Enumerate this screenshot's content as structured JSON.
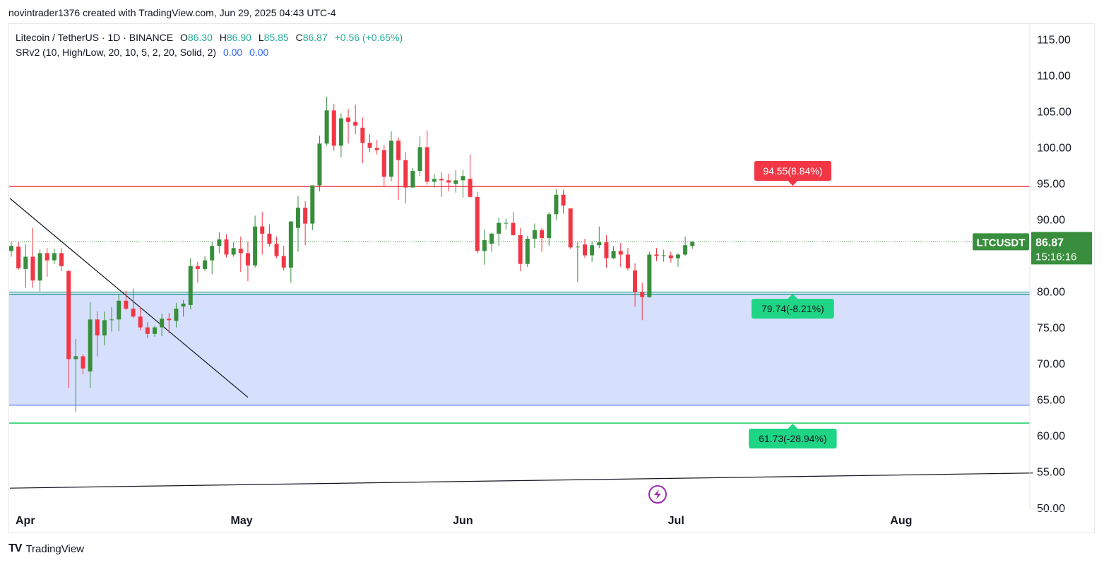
{
  "caption": "novintrader1376 created with TradingView.com, Jun 29, 2025 04:43 UTC-4",
  "legend": {
    "symbol": "Litecoin / TetherUS · 1D · BINANCE",
    "o_label": "O",
    "o_value": "86.30",
    "h_label": "H",
    "h_value": "86.90",
    "l_label": "L",
    "l_value": "85.85",
    "c_label": "C",
    "c_value": "86.87",
    "change": "+0.56 (+0.65%)",
    "indicator": "SRv2 (10, High/Low, 20, 10, 5, 2, 20, Solid, 2)",
    "ind_v1": "0.00",
    "ind_v2": "0.00"
  },
  "footer": {
    "brand": "TradingView",
    "logo": "TV"
  },
  "colors": {
    "up": "#22ab94",
    "up_dark": "#388e3c",
    "down": "#f23645",
    "zone_fill": "#d6e0fc",
    "zone_line": "#2962ff",
    "support_line": "#00897b",
    "low_line": "#00c853",
    "resistance_line": "#f23645",
    "trend": "#131722",
    "flash": "#9c27b0"
  },
  "chart_data": {
    "type": "candlestick",
    "symbol_badge": "LTCUSDT",
    "last_price": "86.87",
    "countdown": "15:16:16",
    "y_ticks": [
      "115.00",
      "110.00",
      "105.00",
      "100.00",
      "95.00",
      "90.00",
      "80.00",
      "75.00",
      "70.00",
      "65.00",
      "60.00",
      "55.00",
      "50.00"
    ],
    "ylim": [
      48.8,
      116.3
    ],
    "x_ticks": [
      {
        "label": "Apr",
        "day": 0
      },
      {
        "label": "May",
        "day": 30
      },
      {
        "label": "Jun",
        "day": 61
      },
      {
        "label": "Jul",
        "day": 91
      },
      {
        "label": "Aug",
        "day": 122
      }
    ],
    "date_range": [
      "2025-04-01",
      "2025-08-14"
    ],
    "levels": {
      "resistance": {
        "price": 94.55,
        "label": "94.55(8.84%)"
      },
      "support": {
        "price": 79.74,
        "label": "79.74(-8.21%)"
      },
      "zone_bottom": {
        "price": 64.2
      },
      "low_target": {
        "price": 61.73,
        "label": "61.73(-28.94%)"
      },
      "label_day": 109
    },
    "trendlines": [
      {
        "from": {
          "day": -0.2,
          "price": 92.9
        },
        "to": {
          "day": 33,
          "price": 65.3
        }
      },
      {
        "from": {
          "day": -0.2,
          "price": 52.7
        },
        "to": {
          "day": 142.5,
          "price": 54.8
        }
      }
    ],
    "candles": [
      {
        "day": 0,
        "o": 85.6,
        "h": 86.8,
        "l": 84.8,
        "c": 86.3
      },
      {
        "day": 1,
        "o": 86.2,
        "h": 86.9,
        "l": 83.0,
        "c": 83.2
      },
      {
        "day": 2,
        "o": 83.1,
        "h": 86.5,
        "l": 80.5,
        "c": 84.8
      },
      {
        "day": 3,
        "o": 84.8,
        "h": 88.8,
        "l": 80.5,
        "c": 81.5
      },
      {
        "day": 4,
        "o": 81.5,
        "h": 85.8,
        "l": 80.0,
        "c": 85.3
      },
      {
        "day": 5,
        "o": 85.3,
        "h": 86.0,
        "l": 82.0,
        "c": 84.3
      },
      {
        "day": 6,
        "o": 84.3,
        "h": 85.9,
        "l": 83.8,
        "c": 85.3
      },
      {
        "day": 7,
        "o": 85.3,
        "h": 86.0,
        "l": 82.8,
        "c": 83.5
      },
      {
        "day": 8,
        "o": 82.8,
        "h": 83.0,
        "l": 66.6,
        "c": 70.6
      },
      {
        "day": 9,
        "o": 70.6,
        "h": 73.4,
        "l": 63.3,
        "c": 71.0
      },
      {
        "day": 10,
        "o": 71.0,
        "h": 71.3,
        "l": 68.5,
        "c": 69.3
      },
      {
        "day": 11,
        "o": 68.9,
        "h": 78.5,
        "l": 66.6,
        "c": 76.1
      },
      {
        "day": 12,
        "o": 76.1,
        "h": 77.2,
        "l": 71.0,
        "c": 73.9
      },
      {
        "day": 13,
        "o": 73.9,
        "h": 77.2,
        "l": 72.5,
        "c": 76.0
      },
      {
        "day": 14,
        "o": 76.0,
        "h": 77.8,
        "l": 74.4,
        "c": 76.1
      },
      {
        "day": 15,
        "o": 76.1,
        "h": 79.6,
        "l": 74.5,
        "c": 78.7
      },
      {
        "day": 16,
        "o": 78.7,
        "h": 80.1,
        "l": 77.4,
        "c": 77.6
      },
      {
        "day": 17,
        "o": 77.6,
        "h": 80.4,
        "l": 76.3,
        "c": 76.5
      },
      {
        "day": 18,
        "o": 76.5,
        "h": 77.8,
        "l": 74.6,
        "c": 75.0
      },
      {
        "day": 19,
        "o": 75.0,
        "h": 75.7,
        "l": 73.5,
        "c": 74.1
      },
      {
        "day": 20,
        "o": 74.1,
        "h": 75.2,
        "l": 73.7,
        "c": 75.0
      },
      {
        "day": 21,
        "o": 75.0,
        "h": 76.9,
        "l": 73.8,
        "c": 76.2
      },
      {
        "day": 22,
        "o": 76.2,
        "h": 77.0,
        "l": 74.2,
        "c": 76.0
      },
      {
        "day": 23,
        "o": 75.9,
        "h": 78.4,
        "l": 75.0,
        "c": 77.6
      },
      {
        "day": 24,
        "o": 77.9,
        "h": 78.8,
        "l": 76.5,
        "c": 78.3
      },
      {
        "day": 25,
        "o": 78.1,
        "h": 84.6,
        "l": 77.5,
        "c": 83.5
      },
      {
        "day": 26,
        "o": 83.5,
        "h": 84.1,
        "l": 81.2,
        "c": 83.1
      },
      {
        "day": 27,
        "o": 83.1,
        "h": 84.9,
        "l": 82.8,
        "c": 84.3
      },
      {
        "day": 28,
        "o": 84.3,
        "h": 86.9,
        "l": 82.4,
        "c": 86.3
      },
      {
        "day": 29,
        "o": 86.3,
        "h": 88.2,
        "l": 85.3,
        "c": 87.2
      },
      {
        "day": 30,
        "o": 87.2,
        "h": 87.9,
        "l": 84.7,
        "c": 85.1
      },
      {
        "day": 31,
        "o": 85.1,
        "h": 86.8,
        "l": 84.8,
        "c": 86.0
      },
      {
        "day": 32,
        "o": 85.9,
        "h": 87.6,
        "l": 82.7,
        "c": 85.3
      },
      {
        "day": 33,
        "o": 85.3,
        "h": 86.9,
        "l": 81.4,
        "c": 83.6
      },
      {
        "day": 34,
        "o": 83.6,
        "h": 90.5,
        "l": 83.3,
        "c": 89.0
      },
      {
        "day": 35,
        "o": 89.0,
        "h": 91.0,
        "l": 85.1,
        "c": 88.0
      },
      {
        "day": 36,
        "o": 88.0,
        "h": 89.3,
        "l": 86.2,
        "c": 86.6
      },
      {
        "day": 37,
        "o": 86.6,
        "h": 87.6,
        "l": 84.6,
        "c": 84.9
      },
      {
        "day": 38,
        "o": 84.9,
        "h": 86.3,
        "l": 82.9,
        "c": 83.3
      },
      {
        "day": 39,
        "o": 83.3,
        "h": 89.7,
        "l": 81.2,
        "c": 89.7
      },
      {
        "day": 40,
        "o": 88.8,
        "h": 93.2,
        "l": 85.5,
        "c": 91.6
      },
      {
        "day": 41,
        "o": 91.6,
        "h": 92.5,
        "l": 86.4,
        "c": 89.4
      },
      {
        "day": 42,
        "o": 89.4,
        "h": 94.7,
        "l": 88.5,
        "c": 94.7
      },
      {
        "day": 43,
        "o": 94.7,
        "h": 101.6,
        "l": 93.9,
        "c": 100.5
      },
      {
        "day": 44,
        "o": 100.5,
        "h": 107.0,
        "l": 100.2,
        "c": 105.1
      },
      {
        "day": 45,
        "o": 105.1,
        "h": 106.0,
        "l": 99.5,
        "c": 100.2
      },
      {
        "day": 46,
        "o": 100.2,
        "h": 104.7,
        "l": 98.6,
        "c": 104.0
      },
      {
        "day": 47,
        "o": 104.1,
        "h": 105.3,
        "l": 100.5,
        "c": 103.5
      },
      {
        "day": 48,
        "o": 103.5,
        "h": 105.9,
        "l": 101.8,
        "c": 103.0
      },
      {
        "day": 49,
        "o": 102.7,
        "h": 104.1,
        "l": 97.8,
        "c": 100.6
      },
      {
        "day": 50,
        "o": 100.6,
        "h": 101.8,
        "l": 99.3,
        "c": 99.9
      },
      {
        "day": 51,
        "o": 99.9,
        "h": 101.0,
        "l": 99.0,
        "c": 99.6
      },
      {
        "day": 52,
        "o": 99.6,
        "h": 100.3,
        "l": 94.5,
        "c": 95.9
      },
      {
        "day": 53,
        "o": 95.9,
        "h": 102.2,
        "l": 95.3,
        "c": 100.9
      },
      {
        "day": 54,
        "o": 100.9,
        "h": 101.3,
        "l": 92.7,
        "c": 98.2
      },
      {
        "day": 55,
        "o": 98.2,
        "h": 99.3,
        "l": 92.2,
        "c": 94.4
      },
      {
        "day": 56,
        "o": 94.4,
        "h": 97.1,
        "l": 94.4,
        "c": 96.7
      },
      {
        "day": 57,
        "o": 96.7,
        "h": 101.5,
        "l": 96.0,
        "c": 100.0
      },
      {
        "day": 58,
        "o": 100.0,
        "h": 102.3,
        "l": 94.8,
        "c": 95.2
      },
      {
        "day": 59,
        "o": 95.2,
        "h": 96.3,
        "l": 94.4,
        "c": 95.6
      },
      {
        "day": 60,
        "o": 95.6,
        "h": 96.5,
        "l": 93.1,
        "c": 95.4
      },
      {
        "day": 61,
        "o": 95.4,
        "h": 96.3,
        "l": 93.9,
        "c": 95.1
      },
      {
        "day": 62,
        "o": 94.9,
        "h": 96.8,
        "l": 93.7,
        "c": 95.4
      },
      {
        "day": 63,
        "o": 95.4,
        "h": 96.8,
        "l": 93.0,
        "c": 96.0
      },
      {
        "day": 64,
        "o": 95.6,
        "h": 99.0,
        "l": 93.0,
        "c": 93.1
      },
      {
        "day": 65,
        "o": 93.1,
        "h": 93.8,
        "l": 85.3,
        "c": 85.6
      },
      {
        "day": 66,
        "o": 85.6,
        "h": 88.6,
        "l": 83.7,
        "c": 87.1
      },
      {
        "day": 67,
        "o": 86.6,
        "h": 88.1,
        "l": 85.5,
        "c": 88.0
      },
      {
        "day": 68,
        "o": 88.0,
        "h": 90.2,
        "l": 86.3,
        "c": 89.5
      },
      {
        "day": 69,
        "o": 89.5,
        "h": 90.1,
        "l": 88.6,
        "c": 89.5
      },
      {
        "day": 70,
        "o": 89.5,
        "h": 91.0,
        "l": 87.7,
        "c": 87.8
      },
      {
        "day": 71,
        "o": 87.8,
        "h": 88.8,
        "l": 82.8,
        "c": 83.8
      },
      {
        "day": 72,
        "o": 83.8,
        "h": 87.7,
        "l": 83.4,
        "c": 87.3
      },
      {
        "day": 73,
        "o": 87.3,
        "h": 89.4,
        "l": 86.0,
        "c": 88.5
      },
      {
        "day": 74,
        "o": 88.5,
        "h": 88.8,
        "l": 85.5,
        "c": 87.4
      },
      {
        "day": 75,
        "o": 87.4,
        "h": 91.0,
        "l": 86.3,
        "c": 90.7
      },
      {
        "day": 76,
        "o": 90.7,
        "h": 94.2,
        "l": 89.9,
        "c": 93.4
      },
      {
        "day": 77,
        "o": 93.4,
        "h": 94.1,
        "l": 90.8,
        "c": 91.9
      },
      {
        "day": 78,
        "o": 91.5,
        "h": 91.5,
        "l": 85.9,
        "c": 86.1
      },
      {
        "day": 79,
        "o": 86.1,
        "h": 86.8,
        "l": 81.3,
        "c": 86.2
      },
      {
        "day": 80,
        "o": 86.5,
        "h": 87.3,
        "l": 84.6,
        "c": 85.0
      },
      {
        "day": 81,
        "o": 85.0,
        "h": 86.9,
        "l": 84.1,
        "c": 86.4
      },
      {
        "day": 82,
        "o": 86.4,
        "h": 89.0,
        "l": 86.0,
        "c": 86.8
      },
      {
        "day": 83,
        "o": 86.8,
        "h": 87.8,
        "l": 83.3,
        "c": 84.6
      },
      {
        "day": 84,
        "o": 84.6,
        "h": 86.3,
        "l": 84.5,
        "c": 85.6
      },
      {
        "day": 85,
        "o": 85.6,
        "h": 86.7,
        "l": 83.4,
        "c": 85.1
      },
      {
        "day": 86,
        "o": 85.1,
        "h": 86.0,
        "l": 82.9,
        "c": 83.2
      },
      {
        "day": 87,
        "o": 82.9,
        "h": 83.9,
        "l": 77.9,
        "c": 79.9
      },
      {
        "day": 88,
        "o": 79.9,
        "h": 81.2,
        "l": 76.0,
        "c": 79.2
      },
      {
        "day": 89,
        "o": 79.2,
        "h": 85.5,
        "l": 79.1,
        "c": 85.1
      },
      {
        "day": 90,
        "o": 85.1,
        "h": 86.0,
        "l": 84.2,
        "c": 84.9
      },
      {
        "day": 91,
        "o": 84.9,
        "h": 85.8,
        "l": 84.1,
        "c": 85.0
      },
      {
        "day": 92,
        "o": 85.0,
        "h": 85.5,
        "l": 84.0,
        "c": 84.6
      },
      {
        "day": 93,
        "o": 84.6,
        "h": 85.3,
        "l": 83.4,
        "c": 85.1
      },
      {
        "day": 94,
        "o": 85.1,
        "h": 87.6,
        "l": 84.9,
        "c": 86.4
      },
      {
        "day": 95,
        "o": 86.3,
        "h": 86.9,
        "l": 85.9,
        "c": 86.9
      }
    ]
  }
}
